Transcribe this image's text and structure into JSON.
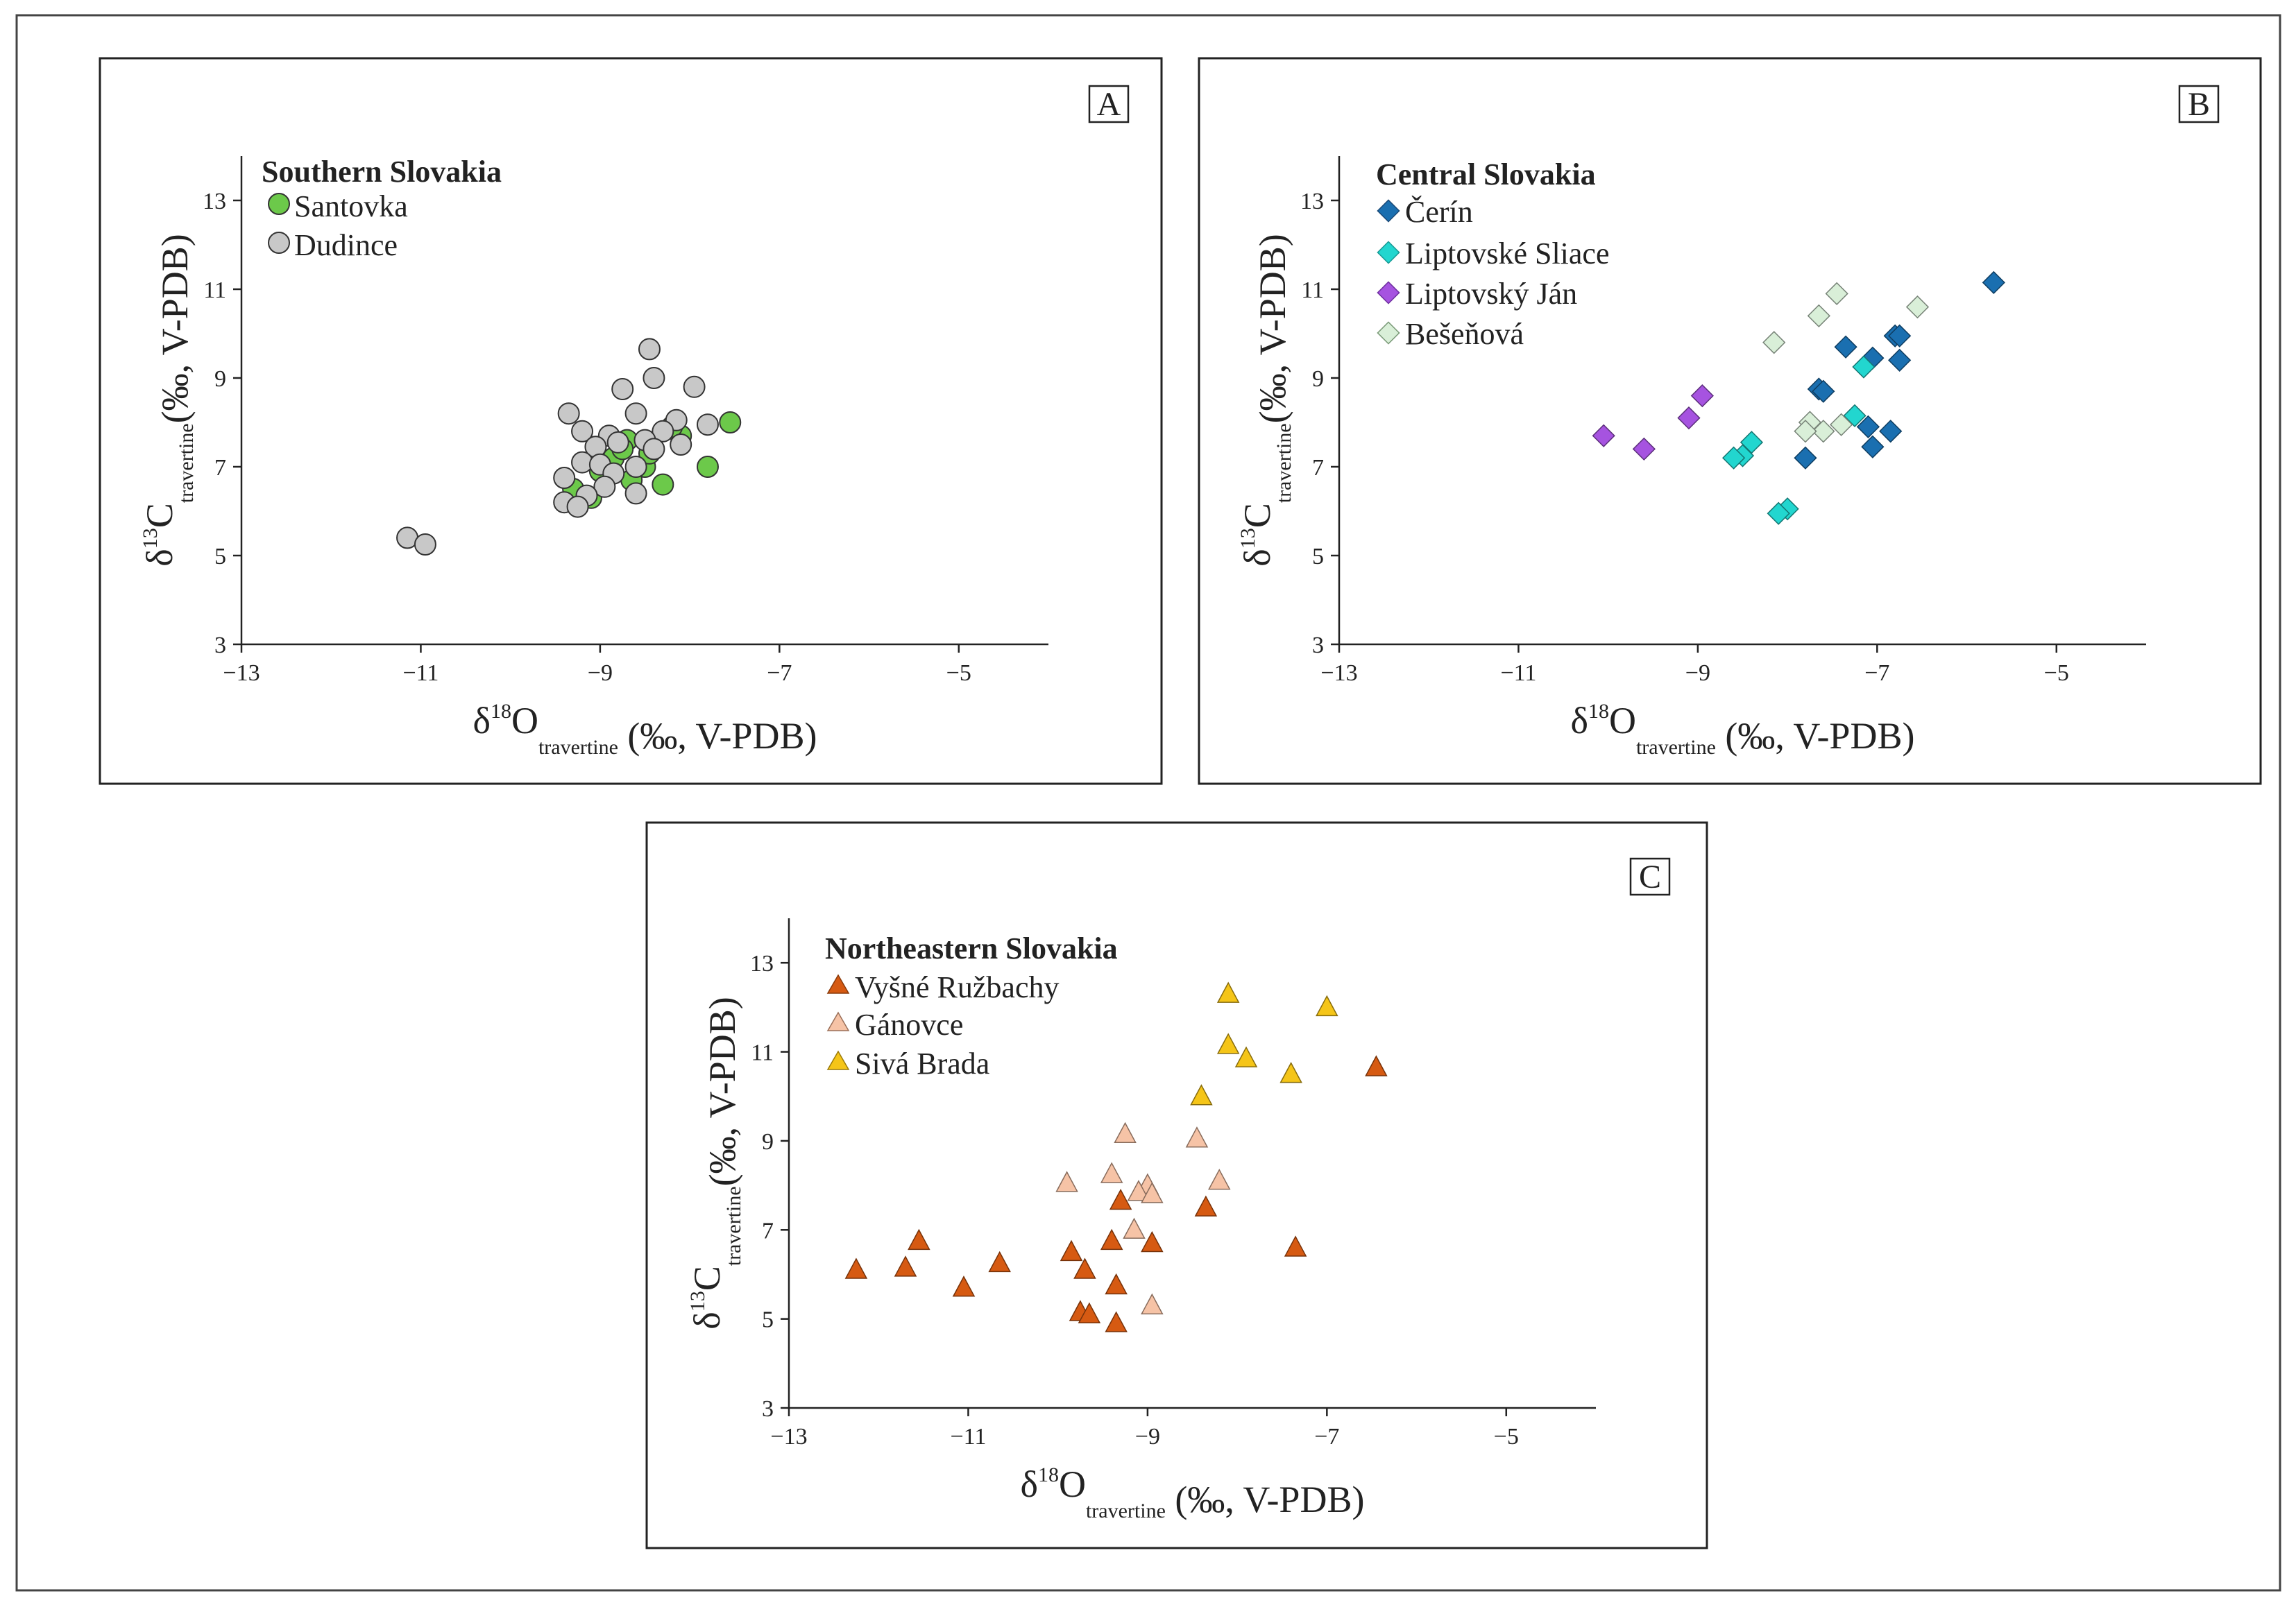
{
  "chart_data": [
    {
      "type": "scatter",
      "panel_label": "A",
      "region": "Southern Slovakia",
      "xlabel": {
        "main": "δ",
        "sup": "18",
        "sym": "O",
        "sub": "travertine",
        "rest": " (‰, V-PDB)"
      },
      "ylabel": {
        "main": "δ",
        "sup": "13",
        "sym": "C",
        "sub": "travertine",
        "rest": "(‰, V-PDB)"
      },
      "xlim": [
        -13,
        -4
      ],
      "ylim": [
        3,
        14
      ],
      "xticks": [
        "−13",
        "−11",
        "−9",
        "−7",
        "−5"
      ],
      "xtick_values": [
        -13,
        -11,
        -9,
        -7,
        -5
      ],
      "yticks": [
        "3",
        "5",
        "7",
        "9",
        "11",
        "13"
      ],
      "ytick_values": [
        3,
        5,
        7,
        9,
        11,
        13
      ],
      "series": [
        {
          "name": "Santovka",
          "marker": "circle",
          "color": "#6cc94a",
          "points": [
            [
              -7.55,
              8.0
            ],
            [
              -7.8,
              7.0
            ],
            [
              -8.3,
              6.6
            ],
            [
              -8.1,
              7.7
            ],
            [
              -8.5,
              7.0
            ],
            [
              -8.7,
              7.6
            ],
            [
              -8.65,
              6.7
            ],
            [
              -9.1,
              6.3
            ],
            [
              -9.3,
              6.5
            ],
            [
              -8.85,
              7.2
            ],
            [
              -8.2,
              7.9
            ],
            [
              -8.45,
              7.3
            ],
            [
              -9.0,
              6.9
            ],
            [
              -8.75,
              7.4
            ]
          ]
        },
        {
          "name": "Dudince",
          "marker": "circle",
          "color": "#c8c8c8",
          "points": [
            [
              -8.45,
              9.65
            ],
            [
              -8.4,
              9.0
            ],
            [
              -7.95,
              8.8
            ],
            [
              -8.75,
              8.75
            ],
            [
              -9.35,
              8.2
            ],
            [
              -8.6,
              8.2
            ],
            [
              -9.2,
              7.8
            ],
            [
              -8.15,
              8.05
            ],
            [
              -7.8,
              7.95
            ],
            [
              -8.3,
              7.8
            ],
            [
              -8.9,
              7.7
            ],
            [
              -9.05,
              7.45
            ],
            [
              -8.5,
              7.6
            ],
            [
              -8.8,
              7.55
            ],
            [
              -8.1,
              7.5
            ],
            [
              -8.4,
              7.4
            ],
            [
              -9.2,
              7.1
            ],
            [
              -9.0,
              7.05
            ],
            [
              -8.6,
              7.0
            ],
            [
              -8.85,
              6.85
            ],
            [
              -9.4,
              6.75
            ],
            [
              -8.95,
              6.55
            ],
            [
              -9.15,
              6.35
            ],
            [
              -8.6,
              6.4
            ],
            [
              -9.4,
              6.2
            ],
            [
              -9.25,
              6.1
            ],
            [
              -11.15,
              5.4
            ],
            [
              -10.95,
              5.25
            ]
          ]
        }
      ]
    },
    {
      "type": "scatter",
      "panel_label": "B",
      "region": "Central Slovakia",
      "xlabel": {
        "main": "δ",
        "sup": "18",
        "sym": "O",
        "sub": "travertine",
        "rest": " (‰, V-PDB)"
      },
      "ylabel": {
        "main": "δ",
        "sup": "13",
        "sym": "C",
        "sub": "travertine",
        "rest": "(‰, V-PDB)"
      },
      "xlim": [
        -13,
        -4
      ],
      "ylim": [
        3,
        14
      ],
      "xticks": [
        "−13",
        "−11",
        "−9",
        "−7",
        "−5"
      ],
      "xtick_values": [
        -13,
        -11,
        -9,
        -7,
        -5
      ],
      "yticks": [
        "3",
        "5",
        "7",
        "9",
        "11",
        "13"
      ],
      "ytick_values": [
        3,
        5,
        7,
        9,
        11,
        13
      ],
      "series": [
        {
          "name": "Čerín",
          "marker": "diamond",
          "color": "#1a6fb0",
          "points": [
            [
              -5.7,
              11.15
            ],
            [
              -6.8,
              9.95
            ],
            [
              -6.75,
              9.95
            ],
            [
              -7.35,
              9.7
            ],
            [
              -7.05,
              9.45
            ],
            [
              -6.75,
              9.4
            ],
            [
              -7.65,
              8.75
            ],
            [
              -7.6,
              8.7
            ],
            [
              -7.1,
              7.9
            ],
            [
              -6.85,
              7.8
            ],
            [
              -7.05,
              7.45
            ],
            [
              -7.8,
              7.2
            ]
          ]
        },
        {
          "name": "Liptovské Sliace",
          "marker": "diamond",
          "color": "#22d6cf",
          "points": [
            [
              -7.15,
              9.25
            ],
            [
              -7.25,
              8.15
            ],
            [
              -8.4,
              7.55
            ],
            [
              -8.5,
              7.25
            ],
            [
              -8.6,
              7.2
            ],
            [
              -8.0,
              6.05
            ],
            [
              -8.1,
              5.95
            ]
          ]
        },
        {
          "name": "Liptovský Ján",
          "marker": "diamond",
          "color": "#a653e0",
          "points": [
            [
              -8.95,
              8.6
            ],
            [
              -9.1,
              8.1
            ],
            [
              -10.05,
              7.7
            ],
            [
              -9.6,
              7.4
            ]
          ]
        },
        {
          "name": "Bešeňová",
          "marker": "diamond",
          "color": "#d9efd8",
          "points": [
            [
              -7.45,
              10.9
            ],
            [
              -6.55,
              10.6
            ],
            [
              -7.65,
              10.4
            ],
            [
              -8.15,
              9.8
            ],
            [
              -7.75,
              8.0
            ],
            [
              -7.4,
              7.95
            ],
            [
              -7.6,
              7.8
            ],
            [
              -7.8,
              7.8
            ]
          ]
        }
      ]
    },
    {
      "type": "scatter",
      "panel_label": "C",
      "region": "Northeastern Slovakia",
      "xlabel": {
        "main": "δ",
        "sup": "18",
        "sym": "O",
        "sub": "travertine",
        "rest": " (‰, V-PDB)"
      },
      "ylabel": {
        "main": "δ",
        "sup": "13",
        "sym": "C",
        "sub": "travertine",
        "rest": "(‰, V-PDB)"
      },
      "xlim": [
        -13,
        -4
      ],
      "ylim": [
        3,
        14
      ],
      "xticks": [
        "−13",
        "−11",
        "−9",
        "−7",
        "−5"
      ],
      "xtick_values": [
        -13,
        -11,
        -9,
        -7,
        -5
      ],
      "yticks": [
        "3",
        "5",
        "7",
        "9",
        "11",
        "13"
      ],
      "ytick_values": [
        3,
        5,
        7,
        9,
        11,
        13
      ],
      "series": [
        {
          "name": "Vyšné Ružbachy",
          "marker": "triangle",
          "color": "#d65a12",
          "points": [
            [
              -6.45,
              10.65
            ],
            [
              -7.35,
              6.6
            ],
            [
              -8.35,
              7.5
            ],
            [
              -9.3,
              7.65
            ],
            [
              -8.95,
              6.7
            ],
            [
              -9.4,
              6.75
            ],
            [
              -9.85,
              6.5
            ],
            [
              -9.7,
              6.1
            ],
            [
              -9.35,
              5.75
            ],
            [
              -9.75,
              5.15
            ],
            [
              -9.65,
              5.1
            ],
            [
              -9.35,
              4.9
            ],
            [
              -10.65,
              6.25
            ],
            [
              -11.05,
              5.7
            ],
            [
              -11.55,
              6.75
            ],
            [
              -11.7,
              6.15
            ],
            [
              -12.25,
              6.1
            ]
          ]
        },
        {
          "name": "Gánovce",
          "marker": "triangle",
          "color": "#f6c3a6",
          "points": [
            [
              -9.25,
              9.15
            ],
            [
              -8.45,
              9.05
            ],
            [
              -9.4,
              8.25
            ],
            [
              -9.9,
              8.05
            ],
            [
              -8.2,
              8.1
            ],
            [
              -9.0,
              8.0
            ],
            [
              -9.1,
              7.85
            ],
            [
              -8.95,
              7.8
            ],
            [
              -9.15,
              7.0
            ],
            [
              -8.95,
              5.3
            ]
          ]
        },
        {
          "name": "Sivá Brada",
          "marker": "triangle",
          "color": "#f5c518",
          "points": [
            [
              -8.1,
              12.3
            ],
            [
              -7.0,
              12.0
            ],
            [
              -8.1,
              11.15
            ],
            [
              -7.9,
              10.85
            ],
            [
              -7.4,
              10.5
            ],
            [
              -8.4,
              10.0
            ]
          ]
        }
      ]
    }
  ]
}
